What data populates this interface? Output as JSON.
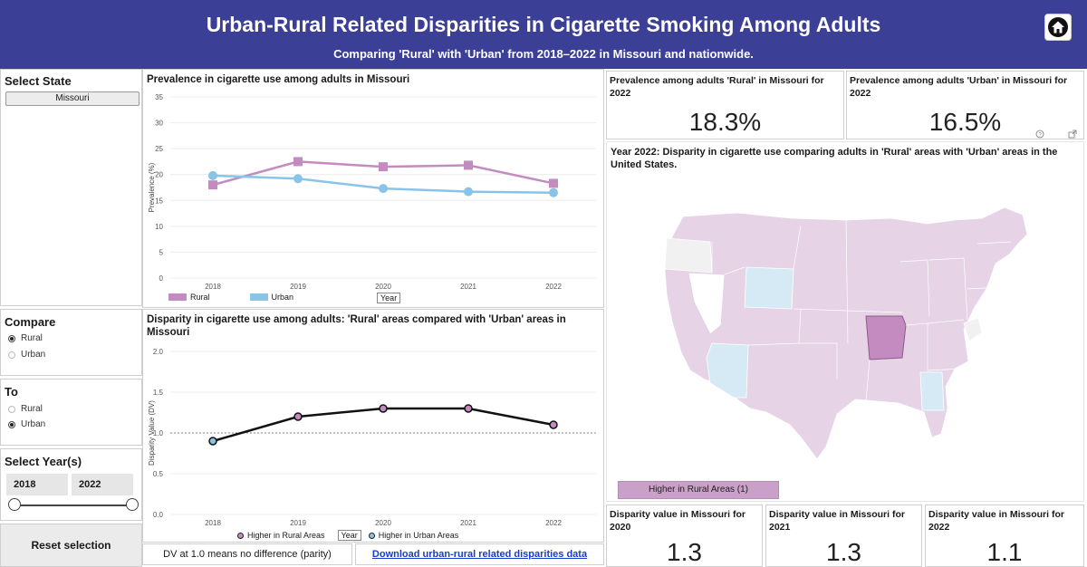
{
  "header": {
    "title": "Urban-Rural Related Disparities in Cigarette Smoking Among Adults",
    "subtitle": "Comparing 'Rural' with 'Urban' from 2018–2022 in Missouri and nationwide."
  },
  "filters": {
    "select_state_label": "Select State",
    "state_value": "Missouri",
    "compare_label": "Compare",
    "compare_options": [
      "Rural",
      "Urban"
    ],
    "compare_selected": "Rural",
    "to_label": "To",
    "to_options": [
      "Rural",
      "Urban"
    ],
    "to_selected": "Urban",
    "years_label": "Select Year(s)",
    "year_start": "2018",
    "year_end": "2022",
    "reset_label": "Reset selection"
  },
  "prevalence_chart": {
    "title": "Prevalence in cigarette use among adults in Missouri",
    "ylabel": "Prevalence (%)",
    "legend_rural": "Rural",
    "legend_urban": "Urban",
    "xaxis_button": "Year"
  },
  "disparity_chart": {
    "title": "Disparity in cigarette use among adults: 'Rural' areas compared with 'Urban' areas in Missouri",
    "ylabel": "Disparity Value (DV)",
    "legend_rural": "Higher in Rural Areas",
    "legend_urban": "Higher in Urban Areas",
    "xaxis_button": "Year"
  },
  "chart_data": [
    {
      "type": "line",
      "title": "Prevalence in cigarette use among adults in Missouri",
      "xlabel": "",
      "ylabel": "Prevalence (%)",
      "x": [
        "2018",
        "2019",
        "2020",
        "2021",
        "2022"
      ],
      "yticks": [
        "0",
        "5",
        "10",
        "15",
        "20",
        "25",
        "30",
        "35"
      ],
      "ylim": [
        0,
        35
      ],
      "series": [
        {
          "name": "Rural",
          "values": [
            18.0,
            22.5,
            21.5,
            21.8,
            18.3
          ],
          "color": "#c38bbf",
          "marker": "square"
        },
        {
          "name": "Urban",
          "values": [
            19.8,
            19.2,
            17.3,
            16.7,
            16.5
          ],
          "color": "#89c4e8",
          "marker": "circle"
        }
      ],
      "grid": true,
      "legend": "bottom"
    },
    {
      "type": "line",
      "title": "Disparity in cigarette use among adults: 'Rural' areas compared with 'Urban' areas in Missouri",
      "xlabel": "",
      "ylabel": "Disparity Value (DV)",
      "x": [
        "2018",
        "2019",
        "2020",
        "2021",
        "2022"
      ],
      "yticks": [
        "0.0",
        "0.5",
        "1.0",
        "1.5",
        "2.0"
      ],
      "ylim": [
        0,
        2
      ],
      "series": [
        {
          "values": [
            0.9,
            1.2,
            1.3,
            1.3,
            1.1
          ],
          "color": "#111111",
          "markers": [
            "urban",
            "rural",
            "rural",
            "rural",
            "rural"
          ]
        }
      ],
      "reference_line": 1.0,
      "grid": true,
      "legend": "bottom"
    }
  ],
  "kpis": {
    "rural_label": "Prevalence among adults 'Rural' in Missouri for 2022",
    "rural_value": "18.3%",
    "urban_label": "Prevalence among adults 'Urban' in Missouri for 2022",
    "urban_value": "16.5%",
    "dv2020_label": "Disparity value in Missouri for 2020",
    "dv2020_value": "1.3",
    "dv2021_label": "Disparity value in Missouri for 2021",
    "dv2021_value": "1.3",
    "dv2022_label": "Disparity value in Missouri for 2022",
    "dv2022_value": "1.1"
  },
  "map": {
    "title": "Year 2022: Disparity in cigarette use comparing adults in 'Rural' areas with 'Urban' areas in the United States.",
    "legend_label": "Higher in Rural Areas (1)",
    "colors": {
      "rural_higher": "#e6d3e6",
      "urban_higher": "#d6eaf6",
      "selected": "#c38bbf",
      "no_data": "#f1f1f1"
    }
  },
  "footer": {
    "dv_note": "DV at 1.0 means no difference (parity)",
    "download_link": "Download urban-rural related disparities data"
  },
  "icons": {
    "home": "home-icon",
    "help": "help-icon",
    "expand": "expand-icon"
  }
}
